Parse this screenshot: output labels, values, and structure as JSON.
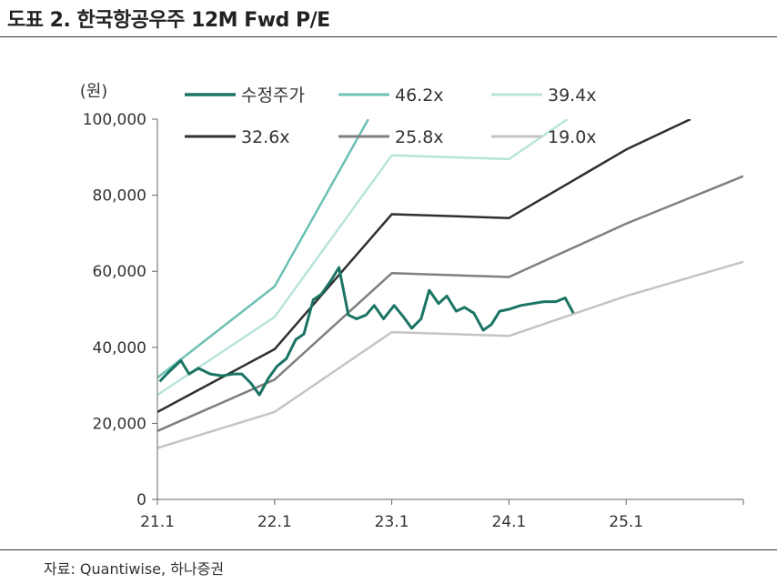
{
  "header": {
    "title": "도표 2. 한국항공우주 12M Fwd P/E"
  },
  "footer": {
    "source": "자료: Quantiwise, 하나증권"
  },
  "chart_data": {
    "type": "line",
    "title": "한국항공우주 12M Fwd P/E",
    "ylabel": "(원)",
    "xlabel": "",
    "ylim": [
      0,
      100000
    ],
    "yticks": [
      0,
      20000,
      40000,
      60000,
      80000,
      100000
    ],
    "ytick_labels": [
      "0",
      "20,000",
      "40,000",
      "60,000",
      "80,000",
      "100,000"
    ],
    "xlim": [
      2021.0,
      2026.0
    ],
    "xticks": [
      2021.0,
      2022.0,
      2023.0,
      2024.0,
      2025.0
    ],
    "xtick_labels": [
      "21.1",
      "22.1",
      "23.1",
      "24.1",
      "25.1"
    ],
    "legend_position": "top",
    "series": [
      {
        "name": "수정주가",
        "color": "#1a7464",
        "width": 3,
        "points": [
          [
            2021.02,
            31000
          ],
          [
            2021.08,
            33000
          ],
          [
            2021.2,
            36500
          ],
          [
            2021.27,
            33000
          ],
          [
            2021.35,
            34500
          ],
          [
            2021.45,
            33000
          ],
          [
            2021.55,
            32500
          ],
          [
            2021.65,
            33000
          ],
          [
            2021.72,
            33000
          ],
          [
            2021.8,
            30500
          ],
          [
            2021.87,
            27500
          ],
          [
            2021.95,
            32000
          ],
          [
            2022.02,
            35000
          ],
          [
            2022.1,
            37000
          ],
          [
            2022.18,
            42000
          ],
          [
            2022.25,
            43500
          ],
          [
            2022.33,
            52500
          ],
          [
            2022.4,
            54000
          ],
          [
            2022.48,
            57500
          ],
          [
            2022.55,
            61000
          ],
          [
            2022.63,
            48500
          ],
          [
            2022.7,
            47500
          ],
          [
            2022.78,
            48500
          ],
          [
            2022.85,
            51000
          ],
          [
            2022.93,
            47500
          ],
          [
            2023.02,
            51000
          ],
          [
            2023.1,
            48000
          ],
          [
            2023.17,
            45000
          ],
          [
            2023.25,
            47500
          ],
          [
            2023.32,
            55000
          ],
          [
            2023.4,
            51500
          ],
          [
            2023.47,
            53500
          ],
          [
            2023.55,
            49500
          ],
          [
            2023.62,
            50500
          ],
          [
            2023.7,
            49000
          ],
          [
            2023.78,
            44500
          ],
          [
            2023.85,
            46000
          ],
          [
            2023.92,
            49500
          ],
          [
            2024.0,
            50000
          ],
          [
            2024.1,
            51000
          ],
          [
            2024.2,
            51500
          ],
          [
            2024.3,
            52000
          ],
          [
            2024.4,
            52000
          ],
          [
            2024.48,
            53000
          ],
          [
            2024.55,
            49000
          ]
        ]
      },
      {
        "name": "46.2x",
        "color": "#6cc0b4",
        "width": 2.5,
        "points": [
          [
            2021.0,
            32000
          ],
          [
            2022.0,
            56000
          ],
          [
            2022.8,
            100000
          ]
        ]
      },
      {
        "name": "39.4x",
        "color": "#b8e4dc",
        "width": 2.5,
        "points": [
          [
            2021.0,
            27500
          ],
          [
            2022.0,
            48000
          ],
          [
            2023.0,
            90500
          ],
          [
            2024.0,
            89500
          ],
          [
            2024.5,
            100000
          ]
        ]
      },
      {
        "name": "32.6x",
        "color": "#2f2f2f",
        "width": 2.5,
        "points": [
          [
            2021.0,
            23000
          ],
          [
            2022.0,
            39500
          ],
          [
            2023.0,
            75000
          ],
          [
            2024.0,
            74000
          ],
          [
            2025.0,
            92000
          ],
          [
            2025.55,
            100000
          ]
        ]
      },
      {
        "name": "25.8x",
        "color": "#7f7f7f",
        "width": 2.5,
        "points": [
          [
            2021.0,
            18000
          ],
          [
            2022.0,
            31500
          ],
          [
            2023.0,
            59500
          ],
          [
            2024.0,
            58500
          ],
          [
            2025.0,
            72500
          ],
          [
            2026.0,
            85000
          ]
        ]
      },
      {
        "name": "19.0x",
        "color": "#c4c4c4",
        "width": 2.5,
        "points": [
          [
            2021.0,
            13500
          ],
          [
            2022.0,
            23000
          ],
          [
            2023.0,
            44000
          ],
          [
            2024.0,
            43000
          ],
          [
            2025.0,
            53500
          ],
          [
            2026.0,
            62500
          ]
        ]
      }
    ]
  }
}
